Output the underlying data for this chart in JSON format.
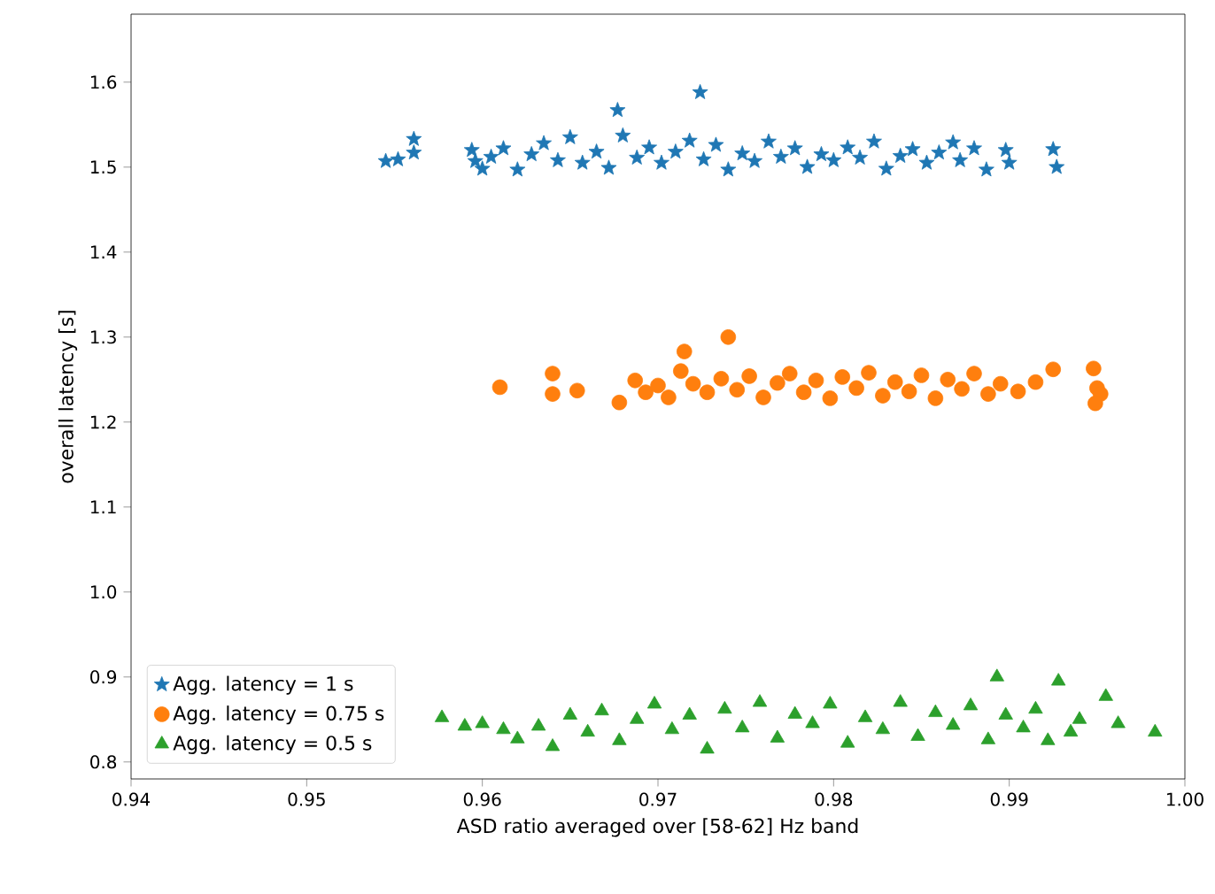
{
  "chart_data": {
    "type": "scatter",
    "xlabel": "ASD ratio averaged over [58-62] Hz band",
    "ylabel": "overall latency [s]",
    "xlim": [
      0.94,
      1.0
    ],
    "ylim": [
      0.78,
      1.68
    ],
    "xticks": [
      {
        "value": 0.94,
        "label": "0.94"
      },
      {
        "value": 0.95,
        "label": "0.95"
      },
      {
        "value": 0.96,
        "label": "0.96"
      },
      {
        "value": 0.97,
        "label": "0.97"
      },
      {
        "value": 0.98,
        "label": "0.98"
      },
      {
        "value": 0.99,
        "label": "0.99"
      },
      {
        "value": 1.0,
        "label": "1.00"
      }
    ],
    "yticks": [
      {
        "value": 0.8,
        "label": "0.8"
      },
      {
        "value": 0.9,
        "label": "0.9"
      },
      {
        "value": 1.0,
        "label": "1.0"
      },
      {
        "value": 1.1,
        "label": "1.1"
      },
      {
        "value": 1.2,
        "label": "1.2"
      },
      {
        "value": 1.3,
        "label": "1.3"
      },
      {
        "value": 1.4,
        "label": "1.4"
      },
      {
        "value": 1.5,
        "label": "1.5"
      },
      {
        "value": 1.6,
        "label": "1.6"
      }
    ],
    "legend": "bottom left",
    "grid": false,
    "series": [
      {
        "name": "Agg. latency = 1 s",
        "color": "#1f77b4",
        "marker": "star",
        "x": [
          0.9545,
          0.9552,
          0.9561,
          0.9561,
          0.9594,
          0.9596,
          0.96,
          0.9605,
          0.9612,
          0.962,
          0.9628,
          0.9635,
          0.9643,
          0.965,
          0.9657,
          0.9665,
          0.9672,
          0.9677,
          0.968,
          0.9688,
          0.9695,
          0.9702,
          0.971,
          0.9718,
          0.9724,
          0.9726,
          0.9733,
          0.974,
          0.9748,
          0.9755,
          0.9763,
          0.977,
          0.9778,
          0.9785,
          0.9793,
          0.98,
          0.9808,
          0.9815,
          0.9823,
          0.983,
          0.9838,
          0.9845,
          0.9853,
          0.986,
          0.9868,
          0.9872,
          0.988,
          0.9887,
          0.9899,
          0.99,
          0.9898,
          0.9925,
          0.9927
        ],
        "values": [
          1.507,
          1.509,
          1.533,
          1.517,
          1.52,
          1.507,
          1.498,
          1.512,
          1.522,
          1.497,
          1.515,
          1.528,
          1.508,
          1.535,
          1.505,
          1.518,
          1.499,
          1.567,
          1.537,
          1.511,
          1.523,
          1.505,
          1.518,
          1.531,
          1.588,
          1.509,
          1.526,
          1.497,
          1.516,
          1.507,
          1.53,
          1.512,
          1.522,
          1.5,
          1.515,
          1.508,
          1.523,
          1.511,
          1.53,
          1.498,
          1.513,
          1.521,
          1.505,
          1.517,
          1.529,
          1.508,
          1.522,
          1.497,
          null,
          1.505,
          1.52,
          1.521,
          1.5
        ]
      },
      {
        "name": "Agg. latency = 0.75 s",
        "color": "#ff7f0e",
        "marker": "circle",
        "x": [
          0.961,
          0.964,
          0.964,
          0.9654,
          0.9678,
          0.9687,
          0.9693,
          0.97,
          0.9706,
          0.9715,
          0.9713,
          0.972,
          0.9728,
          0.9736,
          0.974,
          0.9745,
          0.9752,
          0.976,
          0.9768,
          0.9775,
          0.9783,
          0.979,
          0.9798,
          0.9805,
          0.9813,
          0.982,
          0.9828,
          0.9835,
          0.9843,
          0.985,
          0.9858,
          0.9865,
          0.9873,
          0.988,
          0.9888,
          0.9895,
          0.9905,
          0.9915,
          0.9925,
          0.9948,
          0.995,
          0.9952,
          0.9949
        ],
        "values": [
          1.241,
          1.257,
          1.233,
          1.237,
          1.223,
          1.249,
          1.235,
          1.243,
          1.229,
          1.283,
          1.26,
          1.245,
          1.235,
          1.251,
          1.3,
          1.238,
          1.254,
          1.229,
          1.246,
          1.257,
          1.235,
          1.249,
          1.228,
          1.253,
          1.24,
          1.258,
          1.231,
          1.247,
          1.236,
          1.255,
          1.228,
          1.25,
          1.239,
          1.257,
          1.233,
          1.245,
          1.236,
          1.247,
          1.262,
          1.263,
          1.24,
          1.233,
          1.222
        ]
      },
      {
        "name": "Agg. latency = 0.5 s",
        "color": "#2ca02c",
        "marker": "triangle",
        "x": [
          0.9577,
          0.959,
          0.96,
          0.9612,
          0.962,
          0.9632,
          0.964,
          0.965,
          0.966,
          0.9668,
          0.9678,
          0.9688,
          0.9698,
          0.9708,
          0.9718,
          0.9728,
          0.9738,
          0.9748,
          0.9758,
          0.9768,
          0.9778,
          0.9788,
          0.9798,
          0.9808,
          0.9818,
          0.9828,
          0.9838,
          0.9848,
          0.9858,
          0.9868,
          0.9878,
          0.9888,
          0.9893,
          0.9898,
          0.9908,
          0.9915,
          0.9922,
          0.9928,
          0.9935,
          0.994,
          0.9955,
          0.9962,
          0.9983
        ],
        "values": [
          0.852,
          0.842,
          0.845,
          0.838,
          0.827,
          0.842,
          0.818,
          0.855,
          0.835,
          0.86,
          0.825,
          0.85,
          0.868,
          0.838,
          0.855,
          0.815,
          0.862,
          0.84,
          0.87,
          0.828,
          0.856,
          0.845,
          0.868,
          0.822,
          0.852,
          0.838,
          0.87,
          0.83,
          0.858,
          0.843,
          0.866,
          0.826,
          0.9,
          0.855,
          0.84,
          0.862,
          0.825,
          0.895,
          0.835,
          0.85,
          0.877,
          0.845,
          0.835
        ]
      }
    ]
  }
}
